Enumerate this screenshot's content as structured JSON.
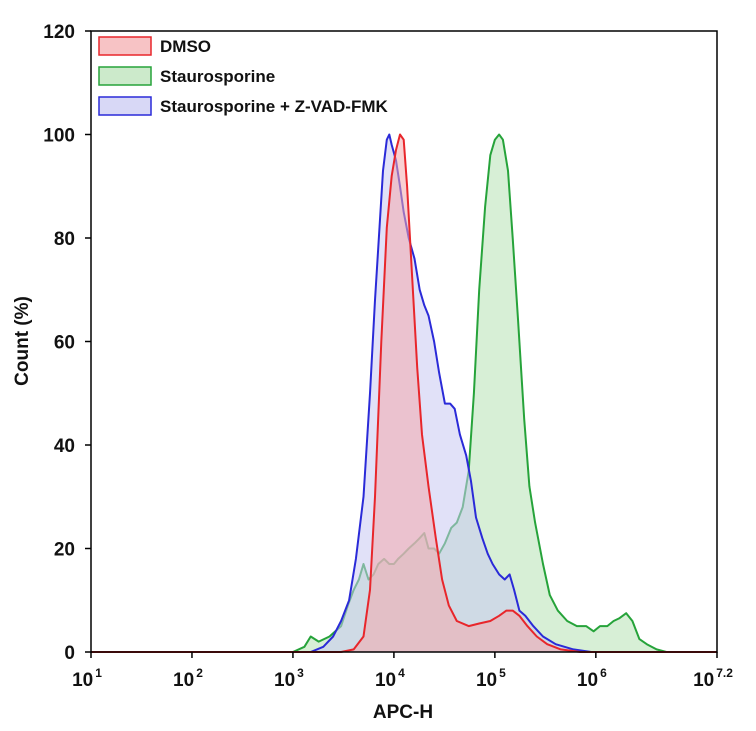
{
  "chart_data": {
    "type": "area",
    "title": "",
    "xlabel": "APC-H",
    "ylabel": "Count (%)",
    "x_scale": "log10",
    "xlim": [
      10,
      15848932
    ],
    "ylim": [
      0,
      120
    ],
    "x_ticks": [
      {
        "value": 10,
        "base": "10",
        "exp": "1"
      },
      {
        "value": 100,
        "base": "10",
        "exp": "2"
      },
      {
        "value": 1000,
        "base": "10",
        "exp": "3"
      },
      {
        "value": 10000,
        "base": "10",
        "exp": "4"
      },
      {
        "value": 100000,
        "base": "10",
        "exp": "5"
      },
      {
        "value": 1000000,
        "base": "10",
        "exp": "6"
      },
      {
        "value": 15848932,
        "base": "10",
        "exp": "7.2"
      }
    ],
    "y_ticks": [
      "0",
      "20",
      "40",
      "60",
      "80",
      "100",
      "120"
    ],
    "grid": false,
    "legend_position": "top-left",
    "series": [
      {
        "name": "DMSO",
        "line_color": "#e8262b",
        "fill_color": "#f4a9ad",
        "points": [
          [
            10,
            0
          ],
          [
            3000,
            0
          ],
          [
            4000,
            0.5
          ],
          [
            5000,
            3
          ],
          [
            5800,
            12
          ],
          [
            6500,
            30
          ],
          [
            7500,
            60
          ],
          [
            8500,
            82
          ],
          [
            9500,
            92
          ],
          [
            10500,
            97
          ],
          [
            11500,
            100
          ],
          [
            12500,
            99
          ],
          [
            13500,
            90
          ],
          [
            15000,
            74
          ],
          [
            17000,
            55
          ],
          [
            19000,
            42
          ],
          [
            22000,
            32
          ],
          [
            26000,
            22
          ],
          [
            30000,
            14
          ],
          [
            35000,
            9
          ],
          [
            42000,
            6
          ],
          [
            55000,
            5
          ],
          [
            70000,
            5.5
          ],
          [
            90000,
            6
          ],
          [
            110000,
            7
          ],
          [
            130000,
            8
          ],
          [
            150000,
            8
          ],
          [
            175000,
            7
          ],
          [
            210000,
            5
          ],
          [
            260000,
            3
          ],
          [
            330000,
            1.5
          ],
          [
            450000,
            0.5
          ],
          [
            700000,
            0
          ],
          [
            15848932,
            0
          ]
        ]
      },
      {
        "name": "Staurosporine",
        "line_color": "#26a33a",
        "fill_color": "#b7e1b5",
        "points": [
          [
            10,
            0
          ],
          [
            1000,
            0
          ],
          [
            1300,
            1
          ],
          [
            1500,
            3
          ],
          [
            1800,
            2
          ],
          [
            2300,
            3
          ],
          [
            3000,
            5
          ],
          [
            3500,
            9
          ],
          [
            4000,
            12
          ],
          [
            4500,
            14
          ],
          [
            5000,
            17
          ],
          [
            5600,
            14
          ],
          [
            6300,
            15
          ],
          [
            7000,
            17
          ],
          [
            8000,
            18
          ],
          [
            9000,
            17
          ],
          [
            10000,
            17
          ],
          [
            11000,
            18
          ],
          [
            12500,
            19
          ],
          [
            14000,
            20
          ],
          [
            16000,
            21
          ],
          [
            18000,
            22
          ],
          [
            20000,
            23
          ],
          [
            22000,
            20
          ],
          [
            25000,
            20
          ],
          [
            28000,
            19
          ],
          [
            32000,
            21
          ],
          [
            37000,
            24
          ],
          [
            42000,
            25
          ],
          [
            48000,
            28
          ],
          [
            55000,
            35
          ],
          [
            62000,
            50
          ],
          [
            70000,
            70
          ],
          [
            80000,
            86
          ],
          [
            90000,
            96
          ],
          [
            100000,
            99
          ],
          [
            110000,
            100
          ],
          [
            120000,
            99
          ],
          [
            135000,
            93
          ],
          [
            150000,
            80
          ],
          [
            170000,
            64
          ],
          [
            195000,
            45
          ],
          [
            220000,
            32
          ],
          [
            250000,
            25
          ],
          [
            300000,
            17
          ],
          [
            350000,
            11
          ],
          [
            420000,
            8
          ],
          [
            520000,
            6
          ],
          [
            650000,
            5
          ],
          [
            800000,
            5
          ],
          [
            950000,
            4
          ],
          [
            1100000,
            5
          ],
          [
            1300000,
            5
          ],
          [
            1500000,
            6
          ],
          [
            1700000,
            6.5
          ],
          [
            2000000,
            7.5
          ],
          [
            2300000,
            6
          ],
          [
            2700000,
            2.5
          ],
          [
            3200000,
            1.5
          ],
          [
            4000000,
            0.5
          ],
          [
            5000000,
            0
          ],
          [
            15848932,
            0
          ]
        ]
      },
      {
        "name": "Staurosporine + Z-VAD-FMK",
        "line_color": "#2a2ad8",
        "fill_color": "#c8c8f2",
        "points": [
          [
            10,
            0
          ],
          [
            1500,
            0
          ],
          [
            2000,
            1
          ],
          [
            2500,
            3
          ],
          [
            3000,
            6
          ],
          [
            3600,
            10
          ],
          [
            4200,
            18
          ],
          [
            5000,
            30
          ],
          [
            5800,
            50
          ],
          [
            6500,
            68
          ],
          [
            7200,
            82
          ],
          [
            7800,
            93
          ],
          [
            8500,
            99
          ],
          [
            9000,
            100
          ],
          [
            9500,
            98
          ],
          [
            10500,
            95
          ],
          [
            11500,
            90
          ],
          [
            12500,
            85
          ],
          [
            14000,
            80
          ],
          [
            16000,
            76
          ],
          [
            18000,
            70
          ],
          [
            20000,
            67
          ],
          [
            22000,
            65
          ],
          [
            25000,
            60
          ],
          [
            28000,
            54
          ],
          [
            32000,
            48
          ],
          [
            36000,
            48
          ],
          [
            40000,
            47
          ],
          [
            45000,
            42
          ],
          [
            52000,
            38
          ],
          [
            58000,
            33
          ],
          [
            65000,
            26
          ],
          [
            75000,
            22
          ],
          [
            85000,
            19
          ],
          [
            95000,
            17
          ],
          [
            110000,
            15
          ],
          [
            125000,
            14
          ],
          [
            140000,
            15
          ],
          [
            155000,
            12
          ],
          [
            175000,
            8
          ],
          [
            200000,
            7
          ],
          [
            240000,
            5
          ],
          [
            300000,
            3
          ],
          [
            400000,
            1.5
          ],
          [
            600000,
            0.5
          ],
          [
            900000,
            0
          ],
          [
            15848932,
            0
          ]
        ]
      }
    ]
  }
}
